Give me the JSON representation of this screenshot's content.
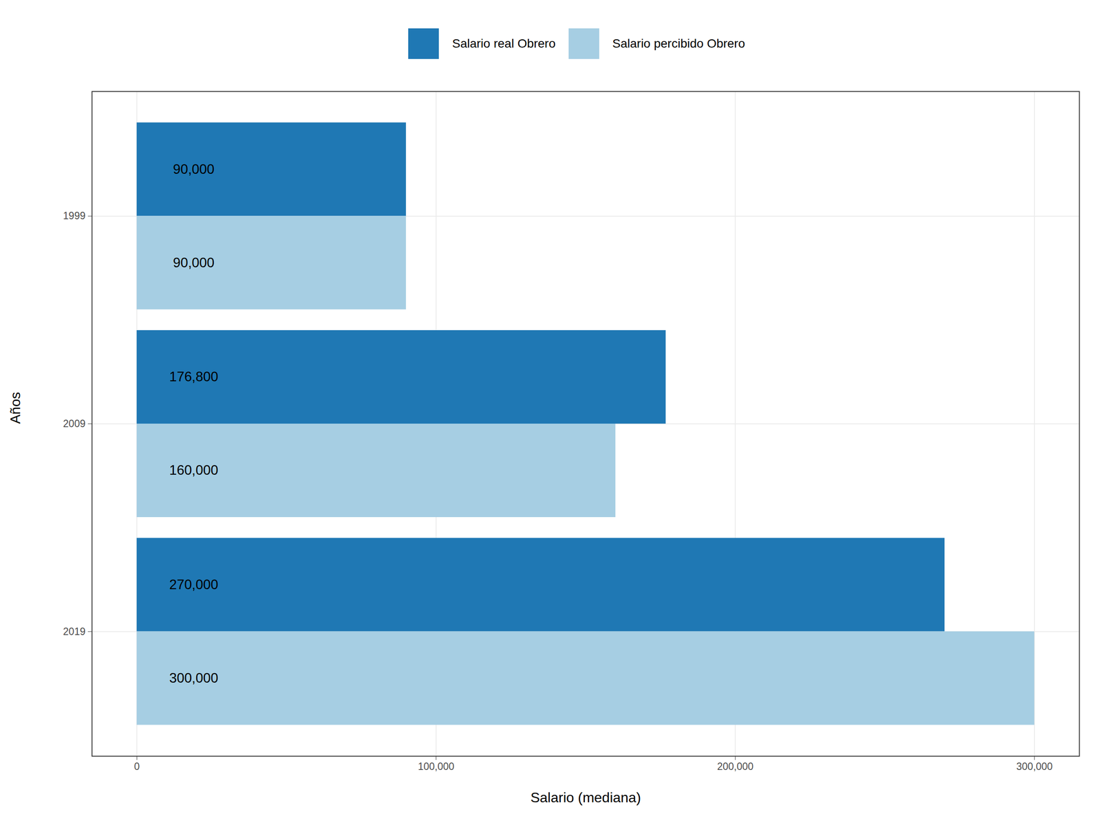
{
  "chart_data": {
    "type": "bar",
    "orientation": "horizontal",
    "x_label": "Salario (mediana)",
    "y_label": "Años",
    "categories": [
      "1999",
      "2009",
      "2019"
    ],
    "series": [
      {
        "name": "Salario real Obrero",
        "color": "#1f78b4",
        "values": [
          90000,
          176800,
          270000
        ],
        "value_labels": [
          "90,000",
          "176,800",
          "270,000"
        ]
      },
      {
        "name": "Salario percibido Obrero",
        "color": "#a6cee3",
        "values": [
          90000,
          160000,
          300000
        ],
        "value_labels": [
          "90,000",
          "160,000",
          "300,000"
        ]
      }
    ],
    "xlim": [
      -15000,
      315000
    ],
    "xticks": [
      {
        "value": 0,
        "label": "0"
      },
      {
        "value": 100000,
        "label": "100,000"
      },
      {
        "value": 200000,
        "label": "200,000"
      },
      {
        "value": 300000,
        "label": "300,000"
      }
    ],
    "grid": true,
    "legend": "top",
    "data_labels": true
  }
}
